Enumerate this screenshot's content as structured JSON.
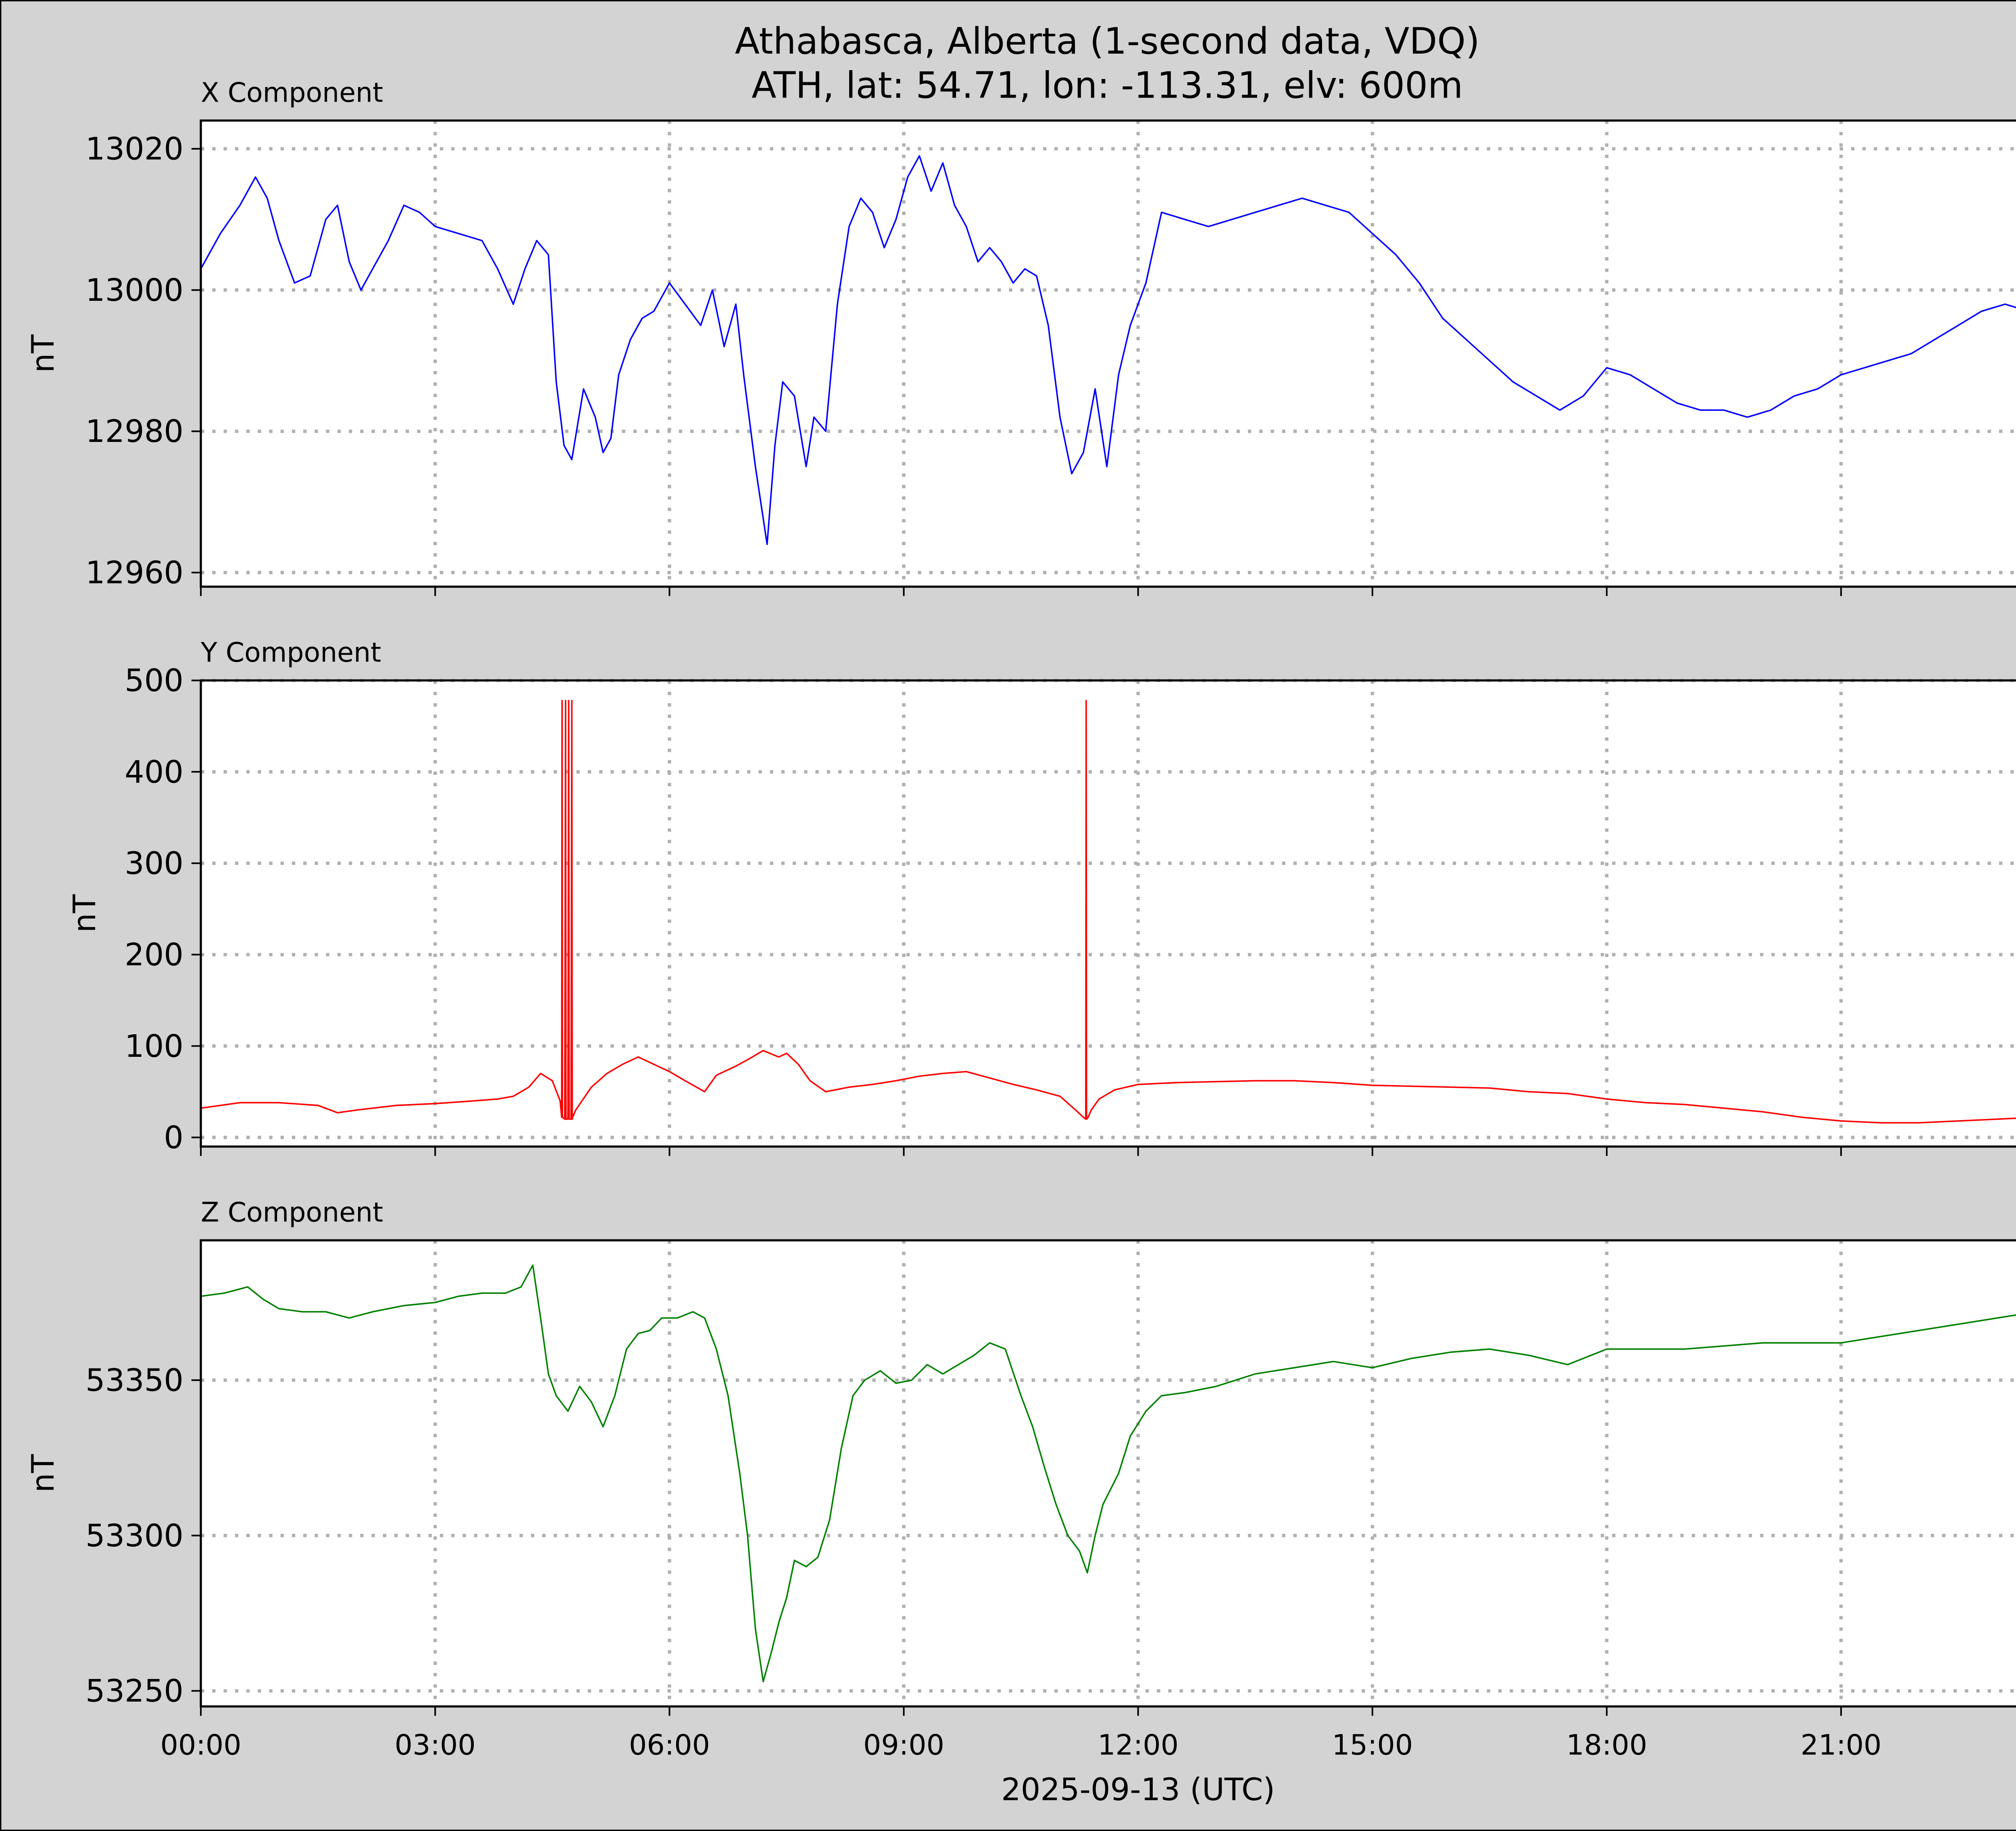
{
  "figure": {
    "title_line1": "Athabasca, Alberta (1-second data, VDQ)",
    "title_line2": "ATH, lat: 54.71, lon: -113.31, elv: 600m",
    "xlabel": "2025-09-13 (UTC)",
    "x_ticks": [
      "00:00",
      "03:00",
      "06:00",
      "09:00",
      "12:00",
      "15:00",
      "18:00",
      "21:00"
    ],
    "background": "#d3d3d3"
  },
  "chart_data": [
    {
      "type": "line",
      "panel_title": "X Component",
      "ylabel": "nT",
      "color": "#0000ff",
      "grid": true,
      "xlim": [
        0,
        24
      ],
      "ylim": [
        12958,
        13024
      ],
      "y_ticks": [
        13020,
        13000,
        12980,
        12960
      ],
      "x": [
        0,
        0.25,
        0.5,
        0.7,
        0.85,
        1.0,
        1.2,
        1.4,
        1.6,
        1.75,
        1.9,
        2.05,
        2.2,
        2.4,
        2.6,
        2.8,
        3.0,
        3.3,
        3.6,
        3.8,
        4.0,
        4.15,
        4.3,
        4.45,
        4.55,
        4.65,
        4.75,
        4.9,
        5.05,
        5.15,
        5.25,
        5.35,
        5.5,
        5.65,
        5.8,
        6.0,
        6.2,
        6.4,
        6.55,
        6.7,
        6.85,
        6.95,
        7.1,
        7.25,
        7.35,
        7.45,
        7.6,
        7.75,
        7.85,
        8.0,
        8.15,
        8.3,
        8.45,
        8.6,
        8.75,
        8.9,
        9.05,
        9.2,
        9.35,
        9.5,
        9.65,
        9.8,
        9.95,
        10.1,
        10.25,
        10.4,
        10.55,
        10.7,
        10.85,
        11.0,
        11.15,
        11.3,
        11.45,
        11.6,
        11.75,
        11.9,
        12.1,
        12.3,
        12.6,
        12.9,
        13.2,
        13.5,
        13.8,
        14.1,
        14.4,
        14.7,
        15.0,
        15.3,
        15.6,
        15.9,
        16.2,
        16.5,
        16.8,
        17.1,
        17.4,
        17.7,
        18.0,
        18.3,
        18.6,
        18.9,
        19.2,
        19.5,
        19.8,
        20.1,
        20.4,
        20.7,
        21.0,
        21.3,
        21.6,
        21.9,
        22.2,
        22.5,
        22.8,
        23.1,
        23.4,
        23.7,
        24.0
      ],
      "values": [
        13003,
        13008,
        13012,
        13016,
        13013,
        13007,
        13001,
        13002,
        13010,
        13012,
        13004,
        13000,
        13003,
        13007,
        13012,
        13011,
        13009,
        13008,
        13007,
        13003,
        12998,
        13003,
        13007,
        13005,
        12987,
        12978,
        12976,
        12986,
        12982,
        12977,
        12979,
        12988,
        12993,
        12996,
        12997,
        13001,
        12998,
        12995,
        13000,
        12992,
        12998,
        12988,
        12975,
        12964,
        12978,
        12987,
        12985,
        12975,
        12982,
        12980,
        12998,
        13009,
        13013,
        13011,
        13006,
        13010,
        13016,
        13019,
        13014,
        13018,
        13012,
        13009,
        13004,
        13006,
        13004,
        13001,
        13003,
        13002,
        12995,
        12982,
        12974,
        12977,
        12986,
        12975,
        12988,
        12995,
        13001,
        13011,
        13010,
        13009,
        13010,
        13011,
        13012,
        13013,
        13012,
        13011,
        13008,
        13005,
        13001,
        12996,
        12993,
        12990,
        12987,
        12985,
        12983,
        12985,
        12989,
        12988,
        12986,
        12984,
        12983,
        12983,
        12982,
        12983,
        12985,
        12986,
        12988,
        12989,
        12990,
        12991,
        12993,
        12995,
        12997,
        12998,
        12997,
        12996,
        12995
      ]
    },
    {
      "type": "line",
      "panel_title": "Y Component",
      "ylabel": "nT",
      "color": "#ff0000",
      "grid": true,
      "xlim": [
        0,
        24
      ],
      "ylim": [
        -10,
        500
      ],
      "y_ticks": [
        500,
        400,
        300,
        200,
        100,
        0
      ],
      "x": [
        0,
        0.5,
        1.0,
        1.5,
        1.75,
        2.0,
        2.5,
        3.0,
        3.5,
        3.8,
        4.0,
        4.2,
        4.35,
        4.5,
        4.6,
        4.62,
        4.625,
        4.63,
        4.66,
        4.67,
        4.675,
        4.68,
        4.7,
        4.71,
        4.715,
        4.72,
        4.74,
        4.75,
        4.755,
        4.76,
        4.8,
        5.0,
        5.2,
        5.4,
        5.6,
        5.8,
        6.0,
        6.2,
        6.45,
        6.6,
        6.85,
        7.0,
        7.2,
        7.4,
        7.5,
        7.65,
        7.8,
        8.0,
        8.3,
        8.6,
        8.9,
        9.2,
        9.5,
        9.8,
        10.1,
        10.4,
        10.7,
        11.0,
        11.2,
        11.3,
        11.33,
        11.335,
        11.34,
        11.36,
        11.4,
        11.5,
        11.7,
        12.0,
        12.5,
        13.0,
        13.5,
        14.0,
        14.5,
        15.0,
        15.5,
        16.0,
        16.5,
        17.0,
        17.5,
        18.0,
        18.5,
        19.0,
        19.5,
        20.0,
        20.5,
        21.0,
        21.5,
        22.0,
        22.5,
        23.0,
        23.5,
        24.0
      ],
      "values": [
        32,
        38,
        38,
        35,
        27,
        30,
        35,
        37,
        40,
        42,
        45,
        55,
        70,
        62,
        40,
        22,
        478,
        22,
        20,
        478,
        20,
        20,
        20,
        478,
        20,
        20,
        20,
        478,
        20,
        22,
        30,
        55,
        70,
        80,
        88,
        80,
        72,
        62,
        50,
        68,
        78,
        85,
        95,
        88,
        92,
        80,
        62,
        50,
        55,
        58,
        62,
        67,
        70,
        72,
        65,
        58,
        52,
        45,
        30,
        22,
        20,
        478,
        20,
        22,
        30,
        42,
        52,
        58,
        60,
        61,
        62,
        62,
        60,
        57,
        56,
        55,
        54,
        50,
        48,
        42,
        38,
        36,
        32,
        28,
        22,
        18,
        16,
        16,
        18,
        20,
        22,
        25
      ]
    },
    {
      "type": "line",
      "panel_title": "Z Component",
      "ylabel": "nT",
      "color": "#008000",
      "grid": true,
      "xlim": [
        0,
        24
      ],
      "ylim": [
        53245,
        53395
      ],
      "y_ticks": [
        53350,
        53300,
        53250
      ],
      "x": [
        0,
        0.3,
        0.6,
        0.8,
        1.0,
        1.3,
        1.6,
        1.9,
        2.2,
        2.6,
        3.0,
        3.3,
        3.6,
        3.9,
        4.1,
        4.25,
        4.35,
        4.45,
        4.55,
        4.7,
        4.85,
        5.0,
        5.15,
        5.3,
        5.45,
        5.6,
        5.75,
        5.9,
        6.1,
        6.3,
        6.45,
        6.6,
        6.75,
        6.9,
        7.0,
        7.1,
        7.2,
        7.3,
        7.4,
        7.5,
        7.6,
        7.75,
        7.9,
        8.05,
        8.2,
        8.35,
        8.5,
        8.7,
        8.9,
        9.1,
        9.3,
        9.5,
        9.7,
        9.9,
        10.1,
        10.3,
        10.5,
        10.65,
        10.8,
        10.95,
        11.1,
        11.25,
        11.35,
        11.45,
        11.55,
        11.65,
        11.75,
        11.9,
        12.1,
        12.3,
        12.6,
        13.0,
        13.5,
        14.0,
        14.5,
        15.0,
        15.5,
        16.0,
        16.5,
        17.0,
        17.5,
        18.0,
        18.5,
        19.0,
        19.5,
        20.0,
        20.5,
        21.0,
        21.5,
        22.0,
        22.5,
        23.0,
        23.5,
        24.0
      ],
      "values": [
        53377,
        53378,
        53380,
        53376,
        53373,
        53372,
        53372,
        53370,
        53372,
        53374,
        53375,
        53377,
        53378,
        53378,
        53380,
        53387,
        53370,
        53352,
        53345,
        53340,
        53348,
        53343,
        53335,
        53345,
        53360,
        53365,
        53366,
        53370,
        53370,
        53372,
        53370,
        53360,
        53345,
        53320,
        53300,
        53270,
        53253,
        53262,
        53272,
        53280,
        53292,
        53290,
        53293,
        53305,
        53328,
        53345,
        53350,
        53353,
        53349,
        53350,
        53355,
        53352,
        53355,
        53358,
        53362,
        53360,
        53345,
        53335,
        53322,
        53310,
        53300,
        53295,
        53288,
        53300,
        53310,
        53315,
        53320,
        53332,
        53340,
        53345,
        53346,
        53348,
        53352,
        53354,
        53356,
        53354,
        53357,
        53359,
        53360,
        53358,
        53355,
        53360,
        53360,
        53360,
        53361,
        53362,
        53362,
        53362,
        53364,
        53366,
        53368,
        53370,
        53372,
        53372
      ]
    }
  ]
}
